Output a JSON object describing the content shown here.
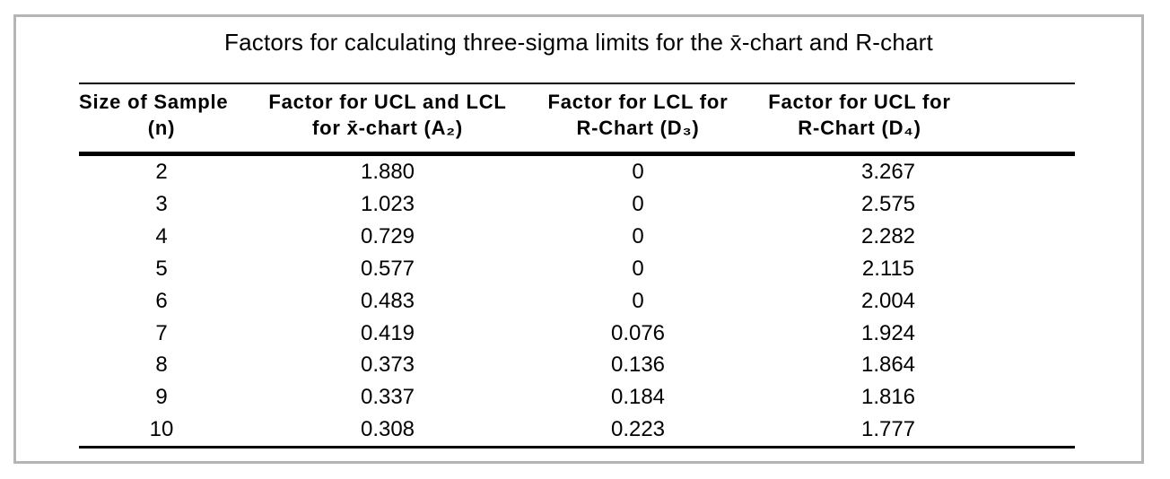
{
  "title": "Factors for calculating three-sigma limits for the x̄-chart and R-chart",
  "colors": {
    "panel_border": "#b5b5b5",
    "rule_color": "#000000",
    "text_color": "#000000",
    "background": "#ffffff"
  },
  "table": {
    "columns": [
      {
        "line1": "Size of Sample",
        "line2": "(n)"
      },
      {
        "line1": "Factor for UCL and LCL",
        "line2": "for x̄-chart (A₂)"
      },
      {
        "line1": "Factor for LCL for",
        "line2": "R-Chart (D₃)"
      },
      {
        "line1": "Factor for UCL for",
        "line2": "R-Chart (D₄)"
      }
    ],
    "rows": [
      [
        "2",
        "1.880",
        "0",
        "3.267"
      ],
      [
        "3",
        "1.023",
        "0",
        "2.575"
      ],
      [
        "4",
        "0.729",
        "0",
        "2.282"
      ],
      [
        "5",
        "0.577",
        "0",
        "2.115"
      ],
      [
        "6",
        "0.483",
        "0",
        "2.004"
      ],
      [
        "7",
        "0.419",
        "0.076",
        "1.924"
      ],
      [
        "8",
        "0.373",
        "0.136",
        "1.864"
      ],
      [
        "9",
        "0.337",
        "0.184",
        "1.816"
      ],
      [
        "10",
        "0.308",
        "0.223",
        "1.777"
      ]
    ]
  }
}
